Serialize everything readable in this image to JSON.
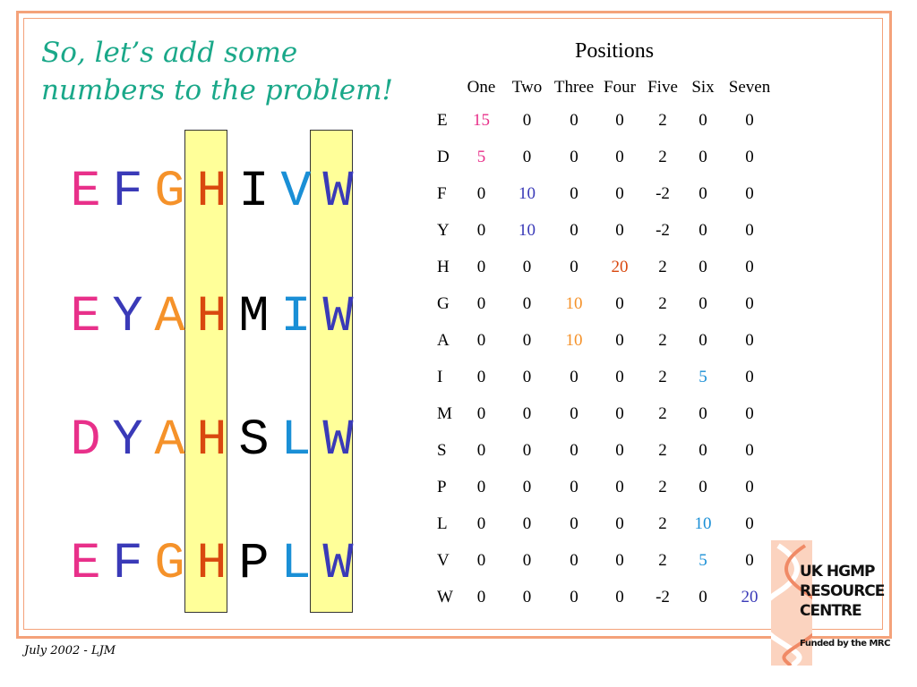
{
  "title": {
    "line1": "So, let’s add some",
    "line2": "numbers to the problem!"
  },
  "colors": {
    "pink": "#e8308a",
    "blue": "#3a3ab8",
    "orange": "#f5922a",
    "dark_orange": "#d9480f",
    "black": "#000000",
    "light_blue": "#1a8fd6",
    "teal": "#1aa889"
  },
  "sequences": [
    {
      "letters": [
        "E",
        "F",
        "G",
        "H",
        "I",
        "V",
        "W"
      ],
      "colors": [
        "pink",
        "blue",
        "orange",
        "dark_orange",
        "black",
        "light_blue",
        "blue"
      ]
    },
    {
      "letters": [
        "E",
        "Y",
        "A",
        "H",
        "M",
        "I",
        "W"
      ],
      "colors": [
        "pink",
        "blue",
        "orange",
        "dark_orange",
        "black",
        "light_blue",
        "blue"
      ]
    },
    {
      "letters": [
        "D",
        "Y",
        "A",
        "H",
        "S",
        "L",
        "W"
      ],
      "colors": [
        "pink",
        "blue",
        "orange",
        "dark_orange",
        "black",
        "light_blue",
        "blue"
      ]
    },
    {
      "letters": [
        "E",
        "F",
        "G",
        "H",
        "P",
        "L",
        "W"
      ],
      "colors": [
        "pink",
        "blue",
        "orange",
        "dark_orange",
        "black",
        "light_blue",
        "blue"
      ]
    }
  ],
  "matrix": {
    "title": "Positions",
    "columns": [
      "One",
      "Two",
      "Three",
      "Four",
      "Five",
      "Six",
      "Seven"
    ],
    "rows": [
      {
        "label": "E",
        "values": [
          "15",
          "0",
          "0",
          "0",
          "2",
          "0",
          "0"
        ],
        "colors": [
          "pink",
          "",
          "",
          "",
          "",
          "",
          ""
        ]
      },
      {
        "label": "D",
        "values": [
          "5",
          "0",
          "0",
          "0",
          "2",
          "0",
          "0"
        ],
        "colors": [
          "pink",
          "",
          "",
          "",
          "",
          "",
          ""
        ]
      },
      {
        "label": "F",
        "values": [
          "0",
          "10",
          "0",
          "0",
          "-2",
          "0",
          "0"
        ],
        "colors": [
          "",
          "blue",
          "",
          "",
          "",
          "",
          ""
        ]
      },
      {
        "label": "Y",
        "values": [
          "0",
          "10",
          "0",
          "0",
          "-2",
          "0",
          "0"
        ],
        "colors": [
          "",
          "blue",
          "",
          "",
          "",
          "",
          ""
        ]
      },
      {
        "label": "H",
        "values": [
          "0",
          "0",
          "0",
          "20",
          "2",
          "0",
          "0"
        ],
        "colors": [
          "",
          "",
          "",
          "dark_orange",
          "",
          "",
          ""
        ]
      },
      {
        "label": "G",
        "values": [
          "0",
          "0",
          "10",
          "0",
          "2",
          "0",
          "0"
        ],
        "colors": [
          "",
          "",
          "orange",
          "",
          "",
          "",
          ""
        ]
      },
      {
        "label": "A",
        "values": [
          "0",
          "0",
          "10",
          "0",
          "2",
          "0",
          "0"
        ],
        "colors": [
          "",
          "",
          "orange",
          "",
          "",
          "",
          ""
        ]
      },
      {
        "label": "I",
        "values": [
          "0",
          "0",
          "0",
          "0",
          "2",
          "5",
          "0"
        ],
        "colors": [
          "",
          "",
          "",
          "",
          "",
          "light_blue",
          ""
        ]
      },
      {
        "label": "M",
        "values": [
          "0",
          "0",
          "0",
          "0",
          "2",
          "0",
          "0"
        ],
        "colors": [
          "",
          "",
          "",
          "",
          "",
          "",
          ""
        ]
      },
      {
        "label": "S",
        "values": [
          "0",
          "0",
          "0",
          "0",
          "2",
          "0",
          "0"
        ],
        "colors": [
          "",
          "",
          "",
          "",
          "",
          "",
          ""
        ]
      },
      {
        "label": "P",
        "values": [
          "0",
          "0",
          "0",
          "0",
          "2",
          "0",
          "0"
        ],
        "colors": [
          "",
          "",
          "",
          "",
          "",
          "",
          ""
        ]
      },
      {
        "label": "L",
        "values": [
          "0",
          "0",
          "0",
          "0",
          "2",
          "10",
          "0"
        ],
        "colors": [
          "",
          "",
          "",
          "",
          "",
          "light_blue",
          ""
        ]
      },
      {
        "label": "V",
        "values": [
          "0",
          "0",
          "0",
          "0",
          "2",
          "5",
          "0"
        ],
        "colors": [
          "",
          "",
          "",
          "",
          "",
          "light_blue",
          ""
        ]
      },
      {
        "label": "W",
        "values": [
          "0",
          "0",
          "0",
          "0",
          "-2",
          "0",
          "20"
        ],
        "colors": [
          "",
          "",
          "",
          "",
          "",
          "",
          "blue"
        ]
      }
    ]
  },
  "footer": "July 2002 - LJM",
  "logo": {
    "line1": "UK HGMP",
    "line2": "RESOURCE",
    "line3": "CENTRE",
    "funded": "Funded by the MRC"
  }
}
